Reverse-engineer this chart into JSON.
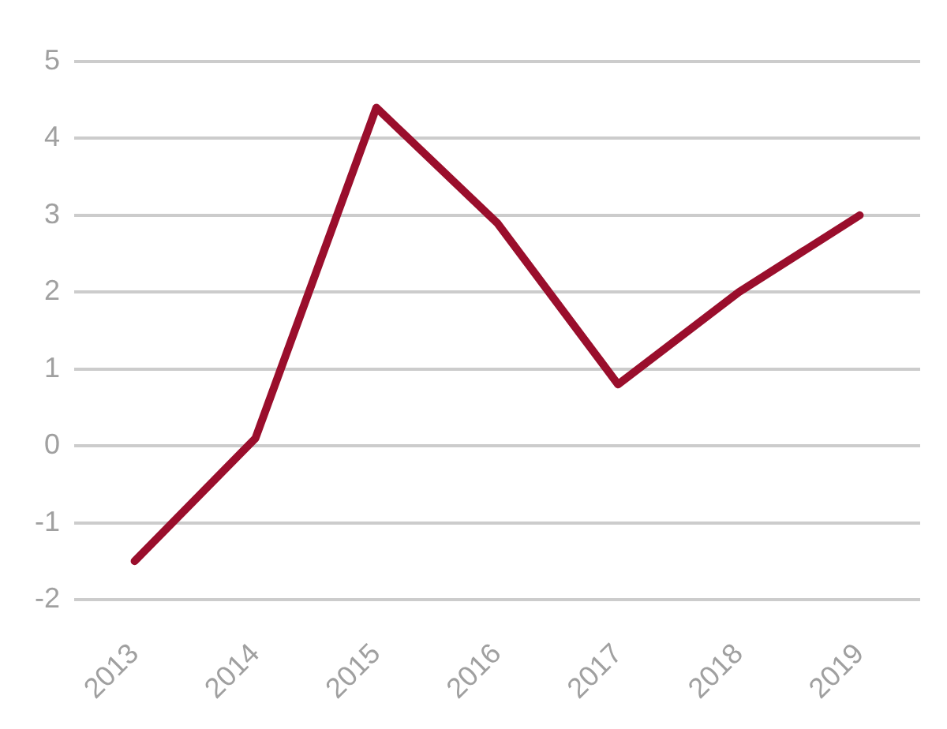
{
  "chart_data": {
    "type": "line",
    "categories": [
      "2013",
      "2014",
      "2015",
      "2016",
      "2017",
      "2018",
      "2019"
    ],
    "series": [
      {
        "color": "#9a0e2c",
        "values": [
          -1.5,
          0.1,
          4.4,
          2.9,
          0.8,
          2.0,
          3.0
        ]
      }
    ],
    "ylim": [
      -2,
      5
    ],
    "yticks": [
      -2,
      -1,
      0,
      1,
      2,
      3,
      4,
      5
    ],
    "grid": "y",
    "marker": "none",
    "line_style": "solid"
  }
}
